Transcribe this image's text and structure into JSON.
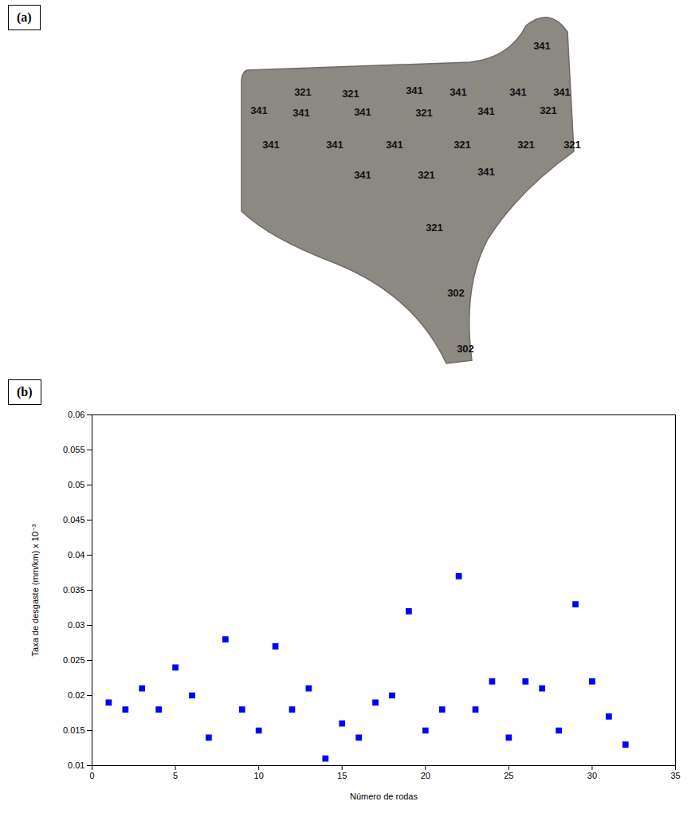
{
  "panel_labels": [
    "(a)",
    "(b)"
  ],
  "photo": {
    "labels": [
      "341",
      "321",
      "321",
      "341",
      "341",
      "341",
      "341",
      "341",
      "341",
      "341",
      "321",
      "341",
      "321",
      "341",
      "341",
      "341",
      "321",
      "321",
      "321",
      "341",
      "321",
      "341",
      "321",
      "302",
      "302"
    ]
  },
  "chart_data": {
    "type": "scatter",
    "x_label": "Número de rodas",
    "y_label": "Taxa de desgaste (mm/km) x 10⁻³",
    "x": [
      1,
      2,
      3,
      4,
      5,
      6,
      7,
      8,
      9,
      10,
      11,
      12,
      13,
      14,
      15,
      16,
      17,
      18,
      19,
      20,
      21,
      22,
      23,
      24,
      25,
      26,
      27,
      28,
      29,
      30,
      31,
      32
    ],
    "values": [
      0.019,
      0.018,
      0.021,
      0.018,
      0.024,
      0.02,
      0.014,
      0.028,
      0.018,
      0.015,
      0.027,
      0.018,
      0.021,
      0.011,
      0.016,
      0.014,
      0.019,
      0.02,
      0.032,
      0.015,
      0.018,
      0.037,
      0.018,
      0.022,
      0.014,
      0.022,
      0.021,
      0.015,
      0.033,
      0.022,
      0.017,
      0.013
    ],
    "color": "#0000ff",
    "marker": "square",
    "xlim": [
      0,
      35
    ],
    "ylim": [
      0.01,
      0.06
    ],
    "xticks": [
      0,
      5,
      10,
      15,
      20,
      25,
      30,
      35
    ],
    "yticks": [
      0.01,
      0.015,
      0.02,
      0.025,
      0.03,
      0.035,
      0.04,
      0.045,
      0.05,
      0.055,
      0.06
    ],
    "grid": false
  }
}
